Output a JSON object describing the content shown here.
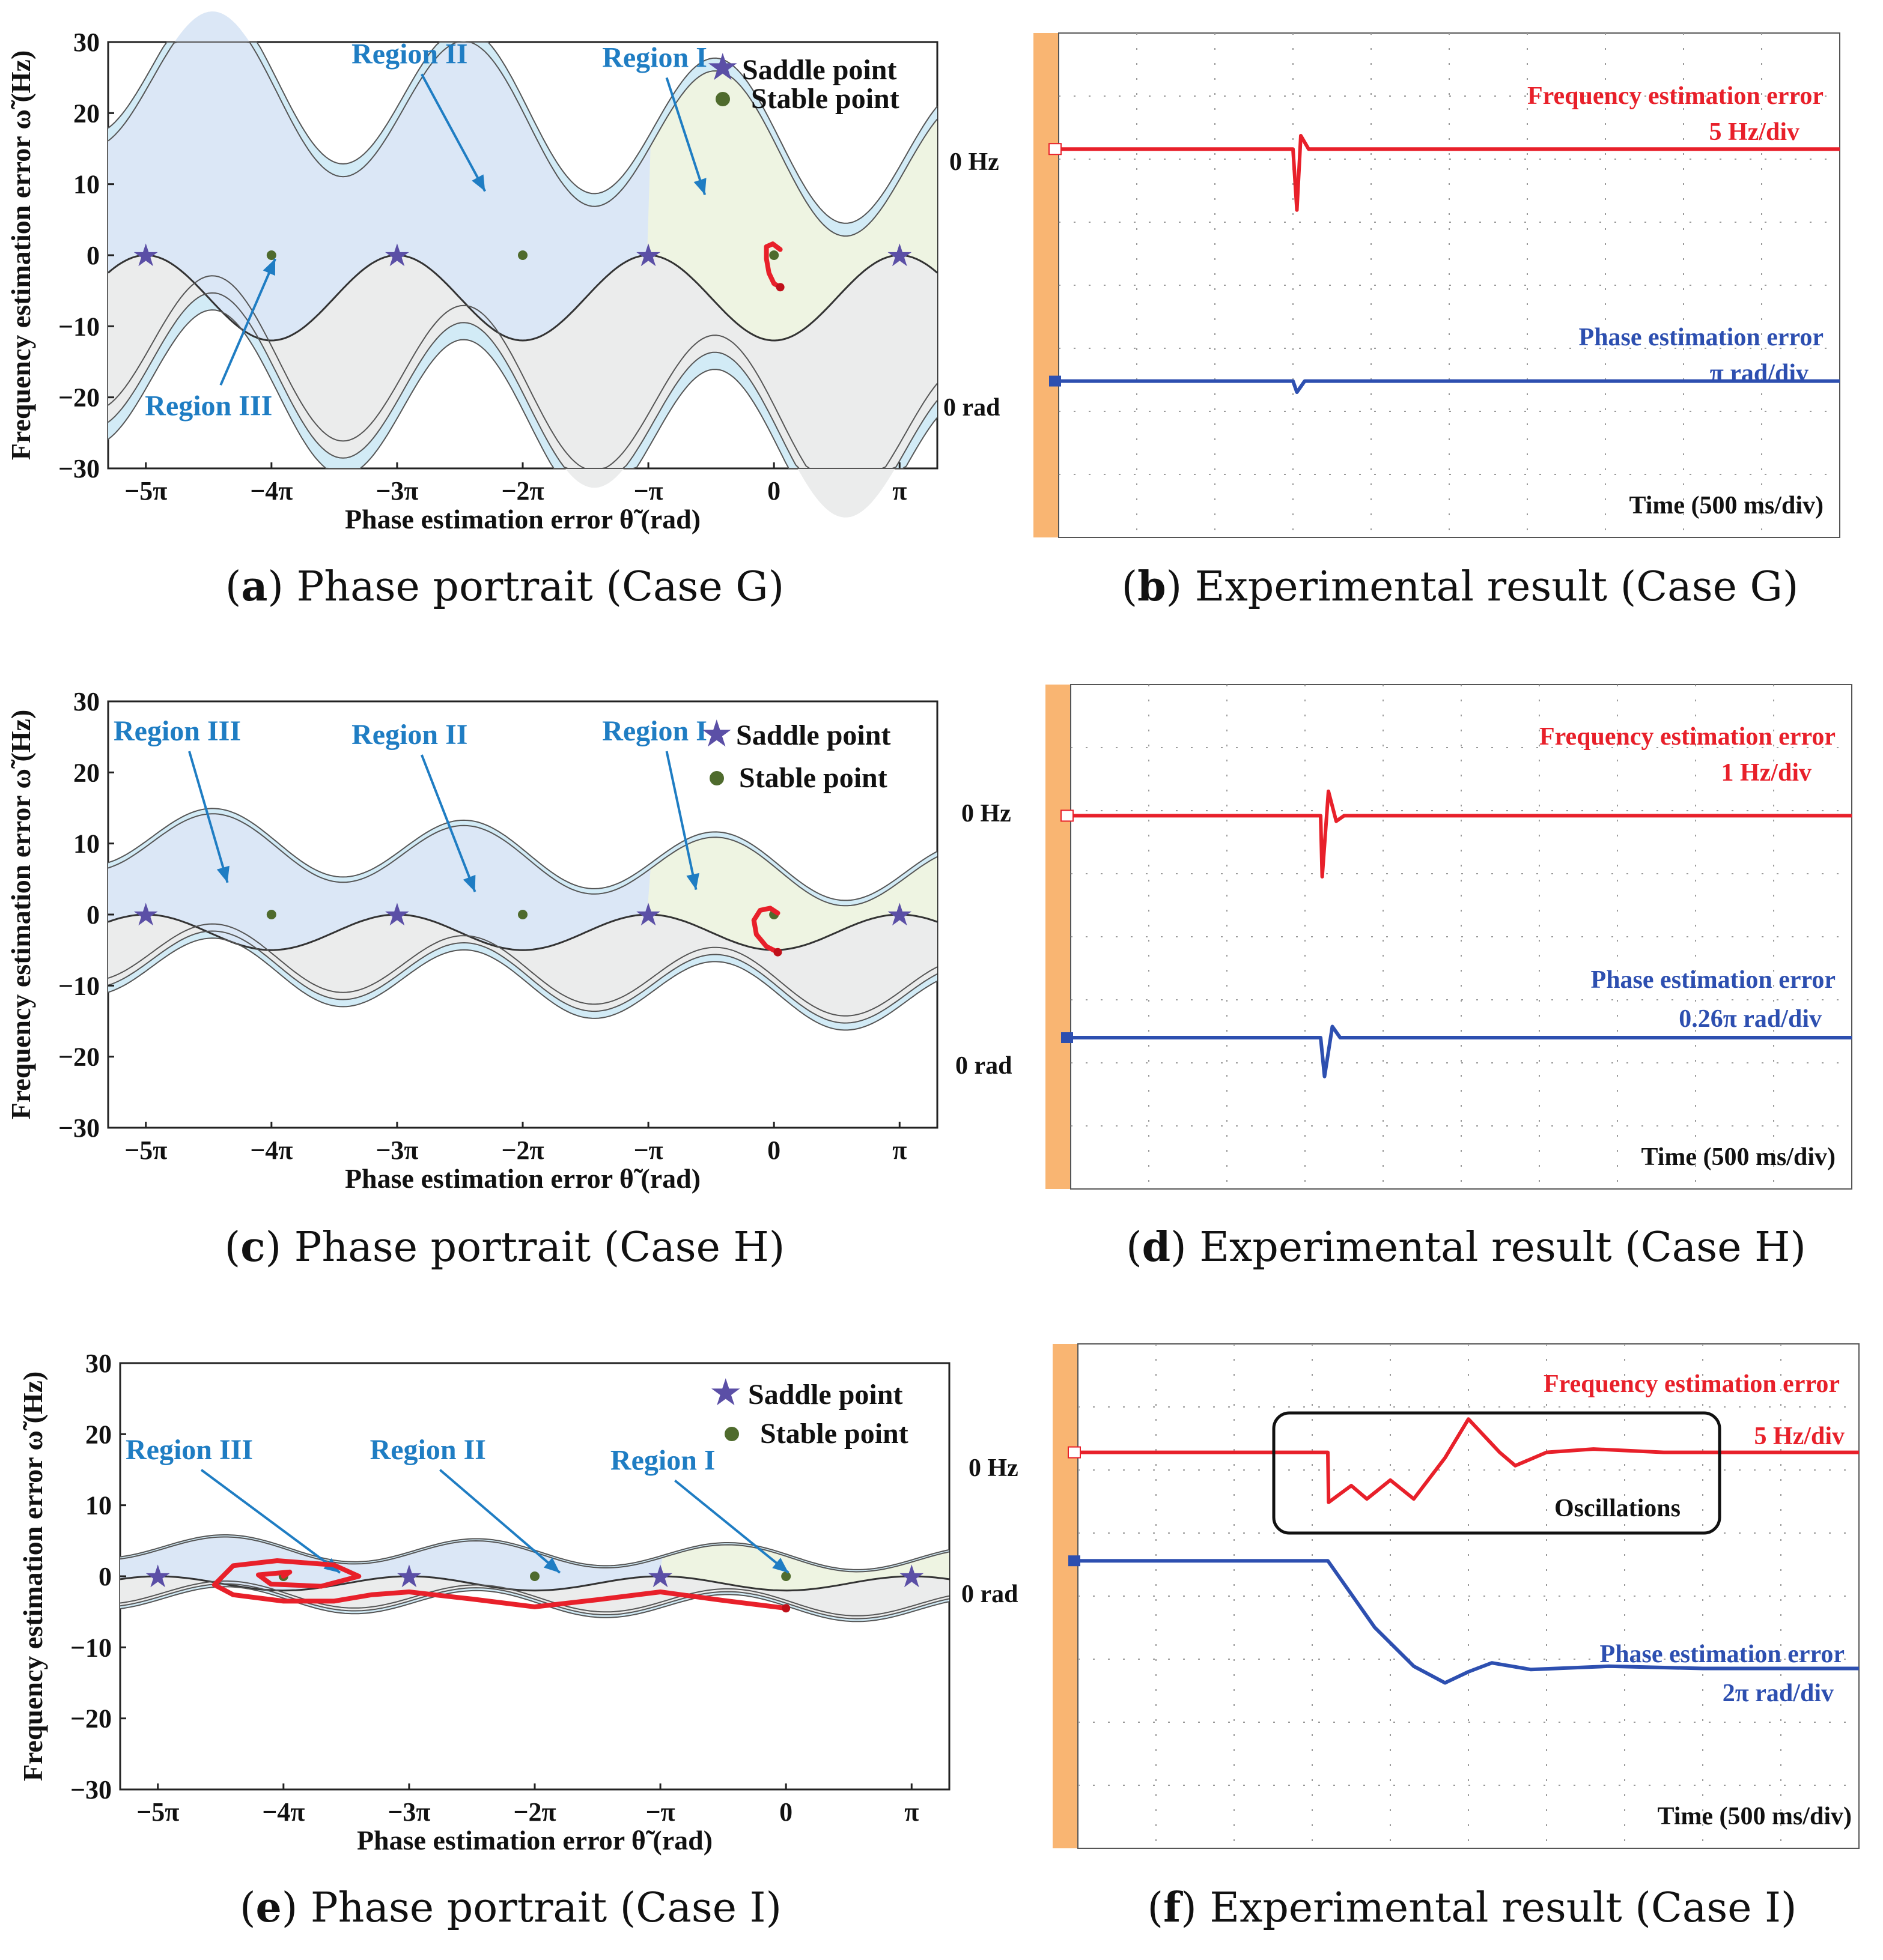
{
  "phase_portraits": [
    {
      "id": "a",
      "caption_letter": "a",
      "caption_text": " Phase portrait (Case G)",
      "amp": 12,
      "slope": 3.8,
      "regions": [
        {
          "label": "Region II",
          "text_x": -2.9,
          "text_y": 27,
          "arrow_to_x": -2.3,
          "arrow_to_y": 9
        },
        {
          "label": "Region I",
          "text_x": -0.95,
          "text_y": 26.5,
          "arrow_to_x": -0.55,
          "arrow_to_y": 8.5
        },
        {
          "label": "Region III",
          "text_x": -4.5,
          "text_y": -22.5,
          "arrow_to_x": -3.97,
          "arrow_to_y": -0.5
        }
      ],
      "trajectory": [
        [
          0.05,
          -4.5
        ],
        [
          0.0,
          -4
        ],
        [
          -0.04,
          -2.5
        ],
        [
          -0.06,
          -0.5
        ],
        [
          -0.06,
          1.2
        ],
        [
          -0.01,
          1.6
        ],
        [
          0.05,
          0.8
        ]
      ],
      "loop_trajectory": null,
      "legend": {
        "saddle": "Saddle point",
        "stable": "Stable point"
      }
    },
    {
      "id": "c",
      "caption_letter": "c",
      "caption_text": " Phase portrait (Case H)",
      "amp": 5,
      "slope": 1.5,
      "regions": [
        {
          "label": "Region III",
          "text_x": -4.75,
          "text_y": 24.5,
          "arrow_to_x": -4.35,
          "arrow_to_y": 4.5
        },
        {
          "label": "Region II",
          "text_x": -2.9,
          "text_y": 24,
          "arrow_to_x": -2.38,
          "arrow_to_y": 3.2
        },
        {
          "label": "Region I",
          "text_x": -0.95,
          "text_y": 24.5,
          "arrow_to_x": -0.62,
          "arrow_to_y": 3.5
        },
        {
          "label": "",
          "text_x": 0,
          "text_y": 0,
          "arrow_to_x": 0,
          "arrow_to_y": 0
        }
      ],
      "trajectory": [
        [
          0.03,
          -5.3
        ],
        [
          -0.06,
          -4.5
        ],
        [
          -0.14,
          -2.8
        ],
        [
          -0.16,
          -0.8
        ],
        [
          -0.11,
          0.6
        ],
        [
          -0.03,
          0.9
        ],
        [
          0.03,
          0.2
        ]
      ],
      "loop_trajectory": null,
      "legend": {
        "saddle": "Saddle point",
        "stable": "Stable point"
      }
    },
    {
      "id": "e",
      "caption_letter": "e",
      "caption_text": " Phase portrait (Case I)",
      "amp": 2,
      "slope": 0.5,
      "regions": [
        {
          "label": "Region III",
          "text_x": -4.75,
          "text_y": 16.5,
          "arrow_to_x": -3.55,
          "arrow_to_y": 0.5
        },
        {
          "label": "Region II",
          "text_x": -2.85,
          "text_y": 16.5,
          "arrow_to_x": -1.8,
          "arrow_to_y": 0.5
        },
        {
          "label": "Region I",
          "text_x": -0.98,
          "text_y": 15,
          "arrow_to_x": 0.02,
          "arrow_to_y": 0.5
        }
      ],
      "trajectory": [
        [
          0.0,
          -4.5
        ],
        [
          -0.5,
          -3.4
        ],
        [
          -1.0,
          -2.2
        ],
        [
          -1.5,
          -3.3
        ],
        [
          -2.0,
          -4.3
        ],
        [
          -2.5,
          -3.2
        ],
        [
          -3.0,
          -2.2
        ],
        [
          -3.3,
          -2.6
        ],
        [
          -3.6,
          -3.5
        ],
        [
          -4.0,
          -3.5
        ],
        [
          -4.4,
          -2.6
        ],
        [
          -4.55,
          -1.2
        ],
        [
          -4.4,
          1.5
        ],
        [
          -4.05,
          2.2
        ],
        [
          -3.6,
          1.6
        ],
        [
          -3.4,
          0.0
        ],
        [
          -3.7,
          -1.4
        ],
        [
          -4.1,
          -1.1
        ],
        [
          -4.2,
          0.2
        ],
        [
          -3.95,
          0.6
        ],
        [
          -4.0,
          0.0
        ]
      ],
      "loop_trajectory": true,
      "legend": {
        "saddle": "Saddle point",
        "stable": "Stable point"
      }
    }
  ],
  "axes": {
    "xlabel": "Phase estimation error θ̃ (rad)",
    "ylabel": "Frequency estimation error ω̃ (Hz)",
    "xticks": [
      "−5π",
      "−4π",
      "−3π",
      "−2π",
      "−π",
      "0",
      "π"
    ],
    "xtick_values": [
      -5,
      -4,
      -3,
      -2,
      -1,
      0,
      1
    ],
    "yticks": [
      "30",
      "20",
      "10",
      "0",
      "−10",
      "−20",
      "−30"
    ],
    "ytick_values": [
      30,
      20,
      10,
      0,
      -10,
      -20,
      -30
    ],
    "xlim_in_pi": [
      -5.3,
      1.3
    ],
    "ylim": [
      -30,
      30
    ]
  },
  "scopes": [
    {
      "id": "b",
      "caption_letter": "b",
      "caption_text": " Experimental result (Case G)",
      "freq_title": "Frequency estimation error",
      "freq_scale": "5 Hz/div",
      "phase_title": "Phase estimation error",
      "phase_scale": "π rad/div",
      "zero_hz": "0 Hz",
      "zero_rad": "0 rad",
      "time_label": "Time (500 ms/div)",
      "oscillations": ""
    },
    {
      "id": "d",
      "caption_letter": "d",
      "caption_text": " Experimental result (Case H)",
      "freq_title": "Frequency estimation error",
      "freq_scale": "1 Hz/div",
      "phase_title": "Phase estimation error",
      "phase_scale": "0.26π  rad/div",
      "zero_hz": "0 Hz",
      "zero_rad": "0 rad",
      "time_label": "Time (500 ms/div)",
      "oscillations": ""
    },
    {
      "id": "f",
      "caption_letter": "f",
      "caption_text": " Experimental result (Case I)",
      "freq_title": "Frequency estimation error",
      "freq_scale": "5 Hz/div",
      "phase_title": "Phase estimation error",
      "phase_scale": "2π  rad/div",
      "zero_hz": "0 Hz",
      "zero_rad": "0 rad",
      "time_label": "Time (500 ms/div)",
      "oscillations": "Oscillations"
    }
  ],
  "chart_data": [
    {
      "type": "line",
      "title": "Phase portrait (Case G)",
      "xlabel": "Phase estimation error (rad)",
      "ylabel": "Frequency estimation error (Hz)",
      "xlim": [
        -5.3,
        1.3
      ],
      "ylim": [
        -30,
        30
      ],
      "saddle_points_x_pi": [
        -5,
        -3,
        -1,
        1
      ],
      "stable_points_x_pi": [
        -4,
        -2,
        0
      ],
      "points_y": 0
    },
    {
      "type": "line",
      "title": "Experimental result (Case G)",
      "series": [
        {
          "name": "Frequency estimation error",
          "scale": "5 Hz/div"
        },
        {
          "name": "Phase estimation error",
          "scale": "π rad/div"
        }
      ],
      "time_scale": "500 ms/div"
    },
    {
      "type": "line",
      "title": "Phase portrait (Case H)",
      "xlabel": "Phase estimation error (rad)",
      "ylabel": "Frequency estimation error (Hz)",
      "xlim": [
        -5.3,
        1.3
      ],
      "ylim": [
        -30,
        30
      ],
      "saddle_points_x_pi": [
        -5,
        -3,
        -1,
        1
      ],
      "stable_points_x_pi": [
        -4,
        -2,
        0
      ],
      "points_y": 0
    },
    {
      "type": "line",
      "title": "Experimental result (Case H)",
      "series": [
        {
          "name": "Frequency estimation error",
          "scale": "1 Hz/div"
        },
        {
          "name": "Phase estimation error",
          "scale": "0.26π rad/div"
        }
      ],
      "time_scale": "500 ms/div"
    },
    {
      "type": "line",
      "title": "Phase portrait (Case I)",
      "xlabel": "Phase estimation error (rad)",
      "ylabel": "Frequency estimation error (Hz)",
      "xlim": [
        -5.3,
        1.3
      ],
      "ylim": [
        -30,
        30
      ],
      "saddle_points_x_pi": [
        -5,
        -3,
        -1,
        1
      ],
      "stable_points_x_pi": [
        -4,
        -2,
        0
      ],
      "points_y": 0
    },
    {
      "type": "line",
      "title": "Experimental result (Case I)",
      "series": [
        {
          "name": "Frequency estimation error",
          "scale": "5 Hz/div"
        },
        {
          "name": "Phase estimation error",
          "scale": "2π rad/div"
        }
      ],
      "time_scale": "500 ms/div",
      "annotation": "Oscillations"
    }
  ],
  "colors": {
    "saddle": "#5b4fa6",
    "stable": "#4f6b2d",
    "region_i": "#eef4e2",
    "region_ii": "#d9e7f7",
    "region_iii": "#ebecec",
    "region_outer": "#d2ebf6",
    "trajectory": "#e8202a",
    "scope_red": "#e8202a",
    "scope_blue": "#2d4fb0",
    "scope_orange": "#f9b572"
  }
}
